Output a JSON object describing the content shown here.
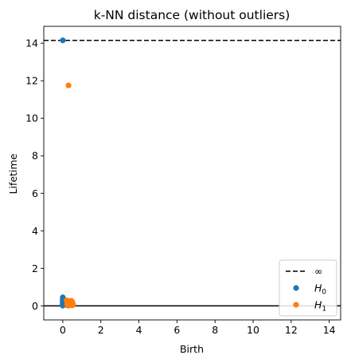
{
  "chart_data": {
    "type": "scatter",
    "title": "k-NN distance (without outliers)",
    "xlabel": "Birth",
    "ylabel": "Lifetime",
    "xlim": [
      -1.0,
      14.6
    ],
    "ylim": [
      -0.75,
      14.9
    ],
    "xticks": [
      0,
      2,
      4,
      6,
      8,
      10,
      12,
      14
    ],
    "yticks": [
      0,
      2,
      4,
      6,
      8,
      10,
      12,
      14
    ],
    "infinity_line": {
      "y": 14.15,
      "label": "∞",
      "style": "dashed",
      "color": "#000000"
    },
    "zero_line": {
      "y": 0,
      "color": "#000000"
    },
    "legend": {
      "position": "lower-right"
    },
    "series": [
      {
        "name": "H0",
        "name_main": "H",
        "name_sub": "0",
        "color": "#1f77b4",
        "points": [
          [
            0.0,
            14.15
          ],
          [
            0.0,
            0.45
          ],
          [
            0.0,
            0.38
          ],
          [
            0.0,
            0.32
          ],
          [
            0.0,
            0.28
          ],
          [
            0.0,
            0.24
          ],
          [
            0.0,
            0.2
          ],
          [
            0.0,
            0.16
          ],
          [
            0.0,
            0.13
          ],
          [
            0.0,
            0.1
          ],
          [
            0.0,
            0.07
          ],
          [
            0.0,
            0.05
          ],
          [
            0.0,
            0.03
          ],
          [
            0.0,
            0.01
          ]
        ]
      },
      {
        "name": "H1",
        "name_main": "H",
        "name_sub": "1",
        "color": "#ff7f0e",
        "points": [
          [
            0.3,
            11.75
          ],
          [
            0.2,
            0.3
          ],
          [
            0.25,
            0.22
          ],
          [
            0.3,
            0.18
          ],
          [
            0.35,
            0.25
          ],
          [
            0.4,
            0.15
          ],
          [
            0.45,
            0.12
          ],
          [
            0.5,
            0.2
          ],
          [
            0.22,
            0.1
          ],
          [
            0.28,
            0.05
          ],
          [
            0.32,
            0.08
          ],
          [
            0.38,
            0.04
          ],
          [
            0.42,
            0.06
          ],
          [
            0.48,
            0.03
          ],
          [
            0.52,
            0.1
          ],
          [
            0.55,
            0.05
          ],
          [
            0.25,
            0.02
          ],
          [
            0.35,
            0.12
          ],
          [
            0.45,
            0.27
          ],
          [
            0.3,
            0.01
          ]
        ]
      }
    ]
  }
}
